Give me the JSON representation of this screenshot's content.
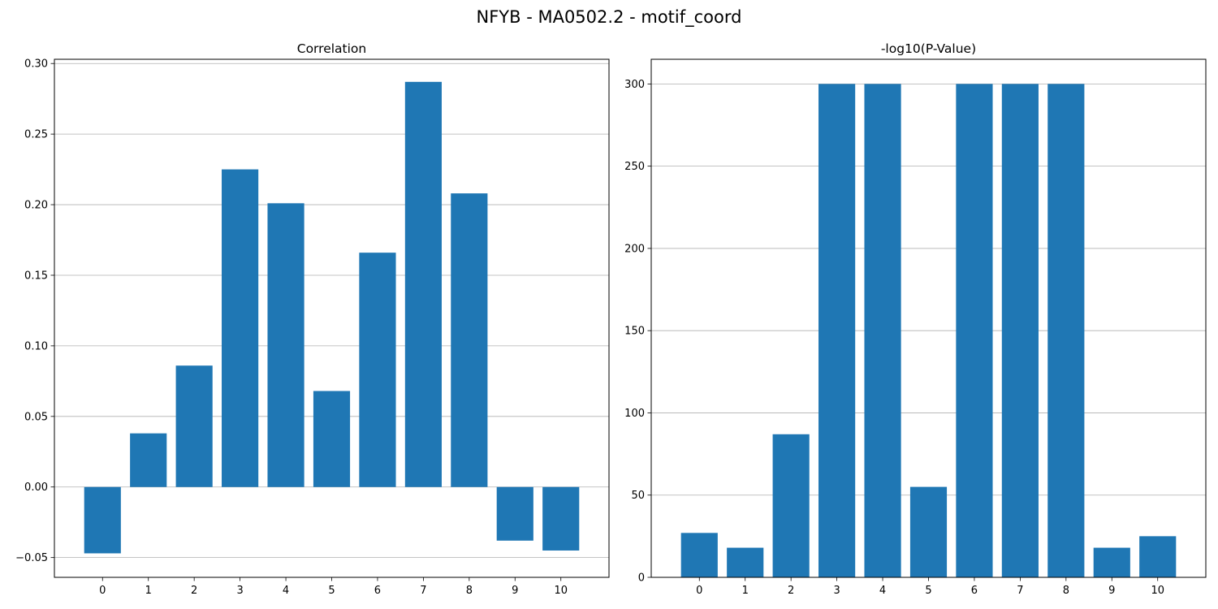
{
  "figure": {
    "title": "NFYB - MA0502.2 - motif_coord"
  },
  "style": {
    "bar_color": "#1f77b4",
    "grid_color": "#b0b0b0"
  },
  "chart_data": [
    {
      "type": "bar",
      "title": "Correlation",
      "xlabel": "",
      "ylabel": "",
      "categories": [
        "0",
        "1",
        "2",
        "3",
        "4",
        "5",
        "6",
        "7",
        "8",
        "9",
        "10"
      ],
      "values": [
        -0.047,
        0.038,
        0.086,
        0.225,
        0.201,
        0.068,
        0.166,
        0.287,
        0.208,
        -0.038,
        -0.045
      ],
      "ylim": [
        -0.064,
        0.303
      ],
      "yticks": [
        -0.05,
        0.0,
        0.05,
        0.1,
        0.15,
        0.2,
        0.25,
        0.3
      ],
      "ytick_labels": [
        "−0.05",
        "0.00",
        "0.05",
        "0.10",
        "0.15",
        "0.20",
        "0.25",
        "0.30"
      ],
      "grid": "y"
    },
    {
      "type": "bar",
      "title": "-log10(P-Value)",
      "xlabel": "",
      "ylabel": "",
      "categories": [
        "0",
        "1",
        "2",
        "3",
        "4",
        "5",
        "6",
        "7",
        "8",
        "9",
        "10"
      ],
      "values": [
        27,
        18,
        87,
        300,
        300,
        55,
        300,
        300,
        300,
        18,
        25
      ],
      "ylim": [
        0,
        315
      ],
      "yticks": [
        0,
        50,
        100,
        150,
        200,
        250,
        300
      ],
      "ytick_labels": [
        "0",
        "50",
        "100",
        "150",
        "200",
        "250",
        "300"
      ],
      "grid": "y"
    }
  ]
}
